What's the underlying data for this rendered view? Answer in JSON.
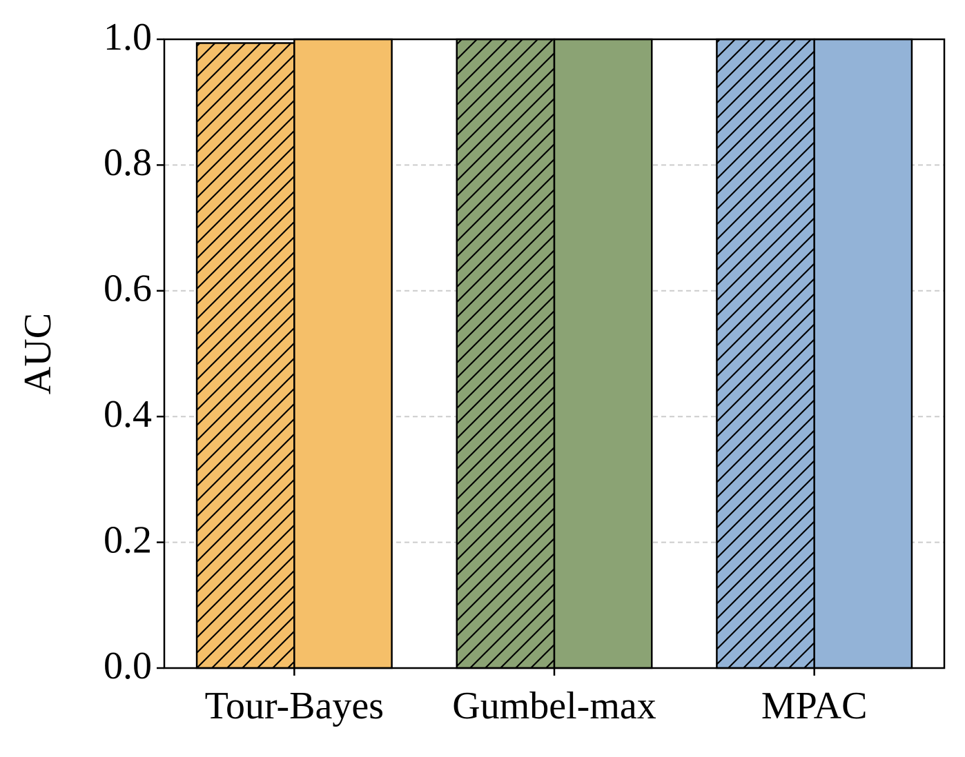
{
  "chart_data": {
    "type": "grouped_bar",
    "y_label": "AUC",
    "categories": [
      "Tour-Bayes",
      "Gumbel-max",
      "MPAC"
    ],
    "series": [
      {
        "hatch": "///",
        "colors": [
          "#f5bf69",
          "#8ba374",
          "#93b3d7"
        ],
        "values": [
          0.994,
          1.0,
          1.0
        ]
      },
      {
        "colors": [
          "#f5bf69",
          "#8ba374",
          "#93b3d7"
        ],
        "values": [
          1.0,
          1.0,
          1.0
        ]
      }
    ],
    "ylim": [
      0.0,
      1.0
    ],
    "yticks": [
      {
        "value": 0,
        "label": "0.0"
      },
      {
        "value": 0.2,
        "label": "0.2"
      },
      {
        "value": 0.4,
        "label": "0.4"
      },
      {
        "value": 0.6,
        "label": "0.6"
      },
      {
        "value": 0.8,
        "label": "0.8"
      },
      {
        "value": 1,
        "label": "1.0"
      }
    ],
    "grid": true
  }
}
